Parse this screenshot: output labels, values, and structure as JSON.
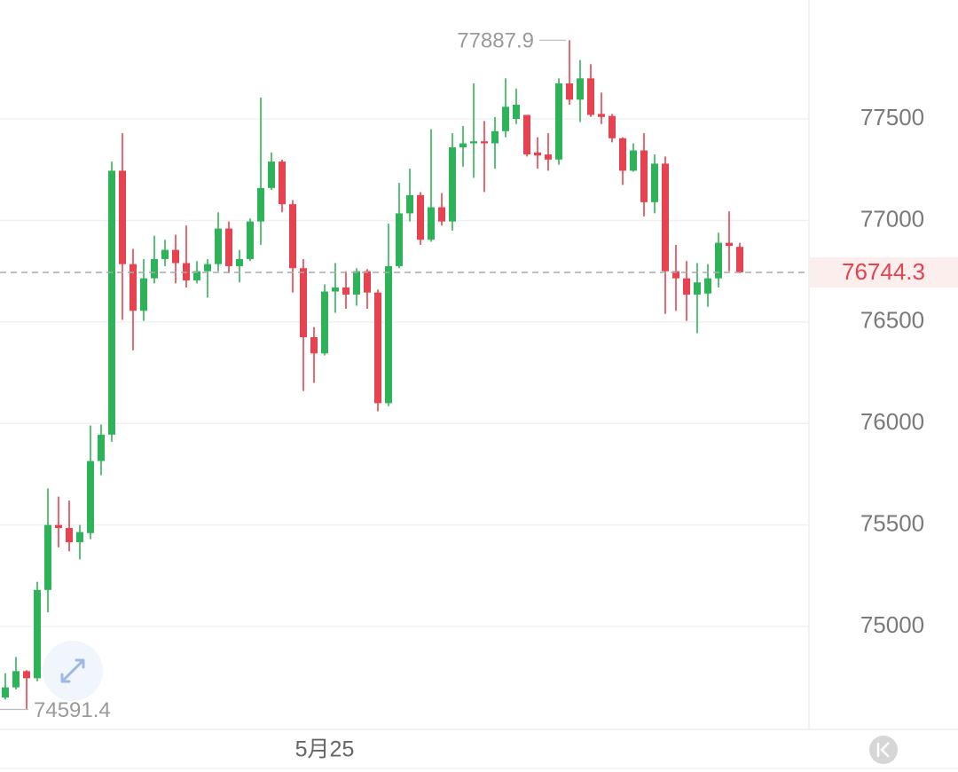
{
  "chart_data": {
    "type": "candlestick",
    "categories": [
      null,
      null,
      null,
      null,
      null,
      null,
      null,
      null,
      null,
      null,
      null,
      null,
      null,
      null,
      null,
      null,
      null,
      null,
      null,
      null,
      null,
      null,
      null,
      null,
      null,
      null,
      null,
      null,
      null,
      null,
      "5月25",
      null,
      null,
      null,
      null,
      null,
      null,
      null,
      null,
      null,
      null,
      null,
      null,
      null,
      null,
      null,
      null,
      null,
      null,
      null,
      null,
      null,
      null,
      null,
      null,
      null,
      null,
      null,
      null,
      null,
      null,
      null,
      null,
      null,
      null,
      null,
      null,
      null,
      null,
      null
    ],
    "open": [
      74650,
      74700,
      74780,
      74745,
      75180,
      75500,
      75485,
      75415,
      75460,
      75815,
      75945,
      77245,
      76785,
      76555,
      76715,
      76810,
      76855,
      76790,
      76705,
      76750,
      76785,
      76960,
      76775,
      76810,
      76995,
      77160,
      77290,
      77080,
      76765,
      76425,
      76345,
      76650,
      76670,
      76635,
      76750,
      76645,
      76100,
      76775,
      77035,
      77125,
      76905,
      77065,
      76995,
      77360,
      77380,
      77390,
      77380,
      77440,
      77500,
      77520,
      77335,
      77325,
      77300,
      77675,
      77595,
      77700,
      77525,
      77515,
      77405,
      77245,
      77345,
      77090,
      77280,
      76750,
      76715,
      76635,
      76640,
      76715,
      76890,
      76870
    ],
    "high": [
      74770,
      74850,
      74785,
      75220,
      75680,
      75640,
      75620,
      75500,
      75990,
      75995,
      77290,
      77430,
      76860,
      76810,
      76925,
      76905,
      76930,
      76975,
      76800,
      76810,
      77040,
      76995,
      76855,
      77010,
      77605,
      77335,
      77300,
      77100,
      76810,
      76475,
      76685,
      76790,
      76750,
      76765,
      76760,
      76660,
      76985,
      77185,
      77255,
      77140,
      77450,
      77135,
      77430,
      77465,
      77675,
      77490,
      77510,
      77700,
      77650,
      77520,
      77410,
      77430,
      77700,
      77887.9,
      77790,
      77770,
      77630,
      77525,
      77410,
      77380,
      77430,
      77325,
      77315,
      76880,
      76800,
      76790,
      76785,
      76940,
      77045,
      76890
    ],
    "low": [
      74640,
      74690,
      74591.4,
      74730,
      75070,
      75390,
      75370,
      75330,
      75430,
      75745,
      75910,
      76510,
      76360,
      76505,
      76690,
      76775,
      76690,
      76670,
      76690,
      76620,
      76750,
      76740,
      76695,
      76800,
      76880,
      77150,
      77040,
      76645,
      76160,
      76200,
      76335,
      76545,
      76565,
      76580,
      76565,
      76060,
      76085,
      76765,
      76995,
      76880,
      76895,
      76975,
      76950,
      77265,
      77210,
      77140,
      77255,
      77410,
      77475,
      77315,
      77255,
      77245,
      77275,
      77570,
      77485,
      77510,
      77475,
      77385,
      77175,
      77240,
      77020,
      77035,
      76540,
      76555,
      76505,
      76445,
      76575,
      76670,
      76750,
      76740
    ],
    "close": [
      74700,
      74780,
      74745,
      75180,
      75500,
      75485,
      75415,
      75465,
      75815,
      75945,
      77245,
      76785,
      76555,
      76715,
      76810,
      76855,
      76790,
      76705,
      76750,
      76785,
      76960,
      76775,
      76810,
      76995,
      77160,
      77290,
      77080,
      76765,
      76425,
      76345,
      76650,
      76670,
      76635,
      76750,
      76645,
      76100,
      76775,
      77035,
      77125,
      76905,
      77065,
      76995,
      77360,
      77380,
      77390,
      77380,
      77440,
      77560,
      77570,
      77325,
      77320,
      77300,
      77675,
      77595,
      77700,
      77520,
      77510,
      77405,
      77245,
      77345,
      77090,
      77280,
      76750,
      76715,
      76635,
      76695,
      76715,
      76890,
      76875,
      76744.3
    ],
    "colors": {
      "up": "#2eb35a",
      "down": "#e6424f"
    },
    "ylim": [
      74493,
      78086
    ],
    "yticks": [
      75000,
      75500,
      76000,
      76500,
      77000,
      77500
    ],
    "grid": true,
    "annotations": {
      "max": 77887.9,
      "min": 74591.4,
      "last": 76744.3
    }
  }
}
